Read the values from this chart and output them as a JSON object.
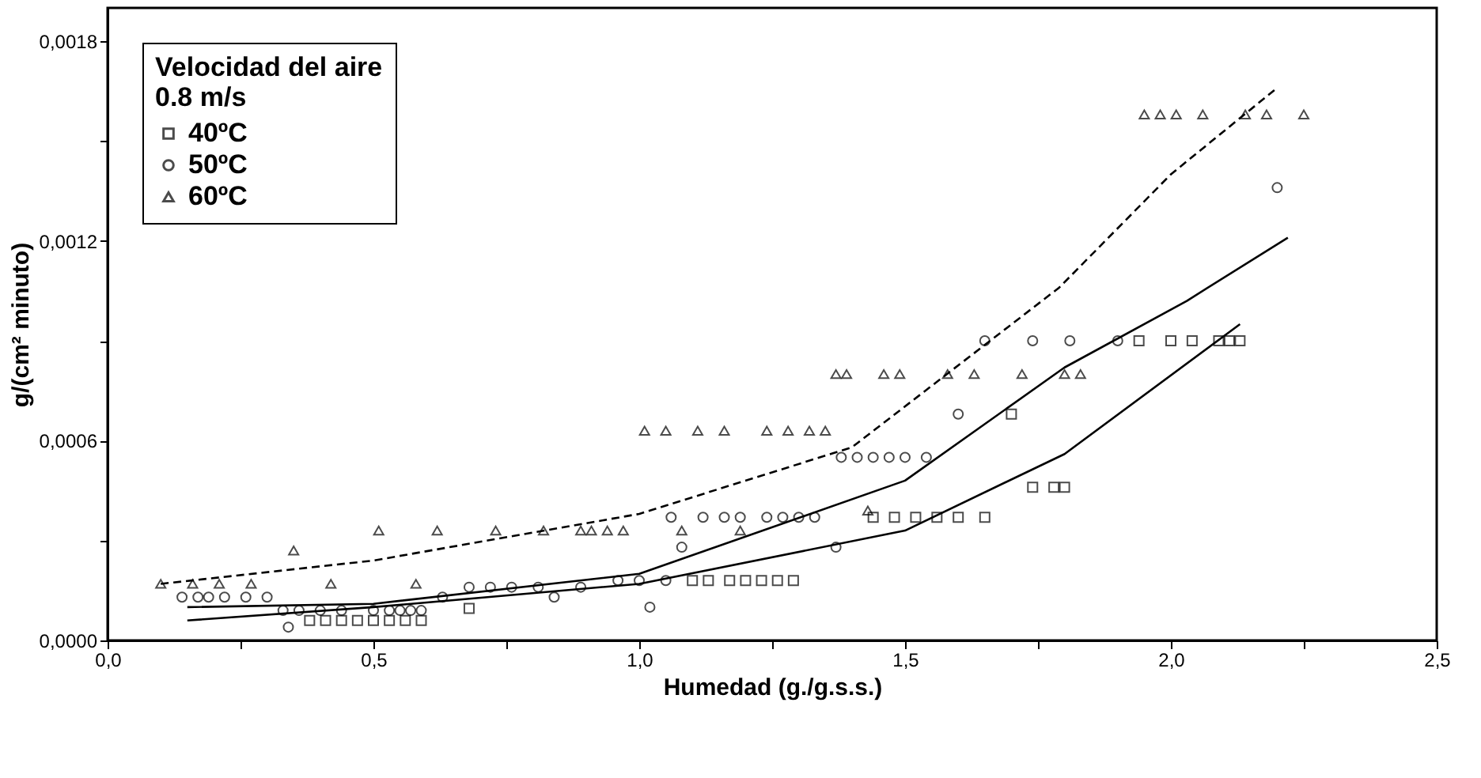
{
  "chart_data": {
    "type": "scatter",
    "xlabel": "Humedad (g./g.s.s.)",
    "ylabel": "g/(cm² minuto)",
    "legend_title": "Velocidad del aire\n0.8 m/s",
    "legend": "top left",
    "grid": false,
    "xlim": [
      0,
      2.5
    ],
    "ylim": [
      0,
      0.0019
    ],
    "xticks": [
      {
        "value": 0,
        "label": "0,0"
      },
      {
        "value": 0.25,
        "label": null
      },
      {
        "value": 0.5,
        "label": "0,5"
      },
      {
        "value": 0.75,
        "label": null
      },
      {
        "value": 1,
        "label": "1,0"
      },
      {
        "value": 1.25,
        "label": null
      },
      {
        "value": 1.5,
        "label": "1,5"
      },
      {
        "value": 1.75,
        "label": null
      },
      {
        "value": 2,
        "label": "2,0"
      },
      {
        "value": 2.25,
        "label": null
      },
      {
        "value": 2.5,
        "label": "2,5"
      }
    ],
    "yticks": [
      {
        "value": 0,
        "label": "0,0000"
      },
      {
        "value": 0.0003,
        "label": null
      },
      {
        "value": 0.0006,
        "label": "0,0006"
      },
      {
        "value": 0.0009,
        "label": null
      },
      {
        "value": 0.0012,
        "label": "0,0012"
      },
      {
        "value": 0.0015,
        "label": null
      },
      {
        "value": 0.0018,
        "label": "0,0018"
      }
    ],
    "series": [
      {
        "name": "40ºC",
        "marker": "square",
        "color": "#000000",
        "x": [
          0.38,
          0.41,
          0.44,
          0.47,
          0.5,
          0.53,
          0.56,
          0.59,
          0.68,
          1.1,
          1.13,
          1.17,
          1.2,
          1.23,
          1.26,
          1.29,
          1.44,
          1.48,
          1.52,
          1.56,
          1.6,
          1.65,
          1.7,
          1.74,
          1.78,
          1.8,
          1.94,
          2.0,
          2.04,
          2.09,
          2.11,
          2.13
        ],
        "values": [
          6e-05,
          6e-05,
          6e-05,
          6e-05,
          6e-05,
          6e-05,
          6e-05,
          6e-05,
          9.6e-05,
          0.00018,
          0.00018,
          0.00018,
          0.00018,
          0.00018,
          0.00018,
          0.00018,
          0.00037,
          0.00037,
          0.00037,
          0.00037,
          0.00037,
          0.00037,
          0.00068,
          0.00046,
          0.00046,
          0.00046,
          0.0009,
          0.0009,
          0.0009,
          0.0009,
          0.0009,
          0.0009
        ]
      },
      {
        "name": "50ºC",
        "marker": "circle",
        "color": "#000000",
        "x": [
          0.14,
          0.17,
          0.19,
          0.22,
          0.26,
          0.3,
          0.33,
          0.34,
          0.36,
          0.4,
          0.44,
          0.5,
          0.53,
          0.55,
          0.57,
          0.59,
          0.63,
          0.68,
          0.72,
          0.76,
          0.81,
          0.84,
          0.89,
          0.96,
          1.0,
          1.02,
          1.05,
          1.06,
          1.08,
          1.12,
          1.16,
          1.19,
          1.24,
          1.27,
          1.3,
          1.33,
          1.37,
          1.38,
          1.41,
          1.44,
          1.47,
          1.5,
          1.54,
          1.6,
          1.65,
          1.74,
          1.81,
          1.9,
          2.2
        ],
        "values": [
          0.00013,
          0.00013,
          0.00013,
          0.00013,
          0.00013,
          0.00013,
          9e-05,
          4e-05,
          9e-05,
          9e-05,
          9e-05,
          9e-05,
          9e-05,
          9e-05,
          9e-05,
          9e-05,
          0.00013,
          0.00016,
          0.00016,
          0.00016,
          0.00016,
          0.00013,
          0.00016,
          0.00018,
          0.00018,
          0.0001,
          0.00018,
          0.00037,
          0.00028,
          0.00037,
          0.00037,
          0.00037,
          0.00037,
          0.00037,
          0.00037,
          0.00037,
          0.00028,
          0.00055,
          0.00055,
          0.00055,
          0.00055,
          0.00055,
          0.00055,
          0.00068,
          0.0009,
          0.0009,
          0.0009,
          0.0009,
          0.00136
        ]
      },
      {
        "name": "60ºC",
        "marker": "triangle",
        "color": "#000000",
        "x": [
          0.1,
          0.16,
          0.21,
          0.27,
          0.35,
          0.42,
          0.51,
          0.58,
          0.62,
          0.73,
          0.82,
          0.89,
          0.91,
          0.94,
          0.97,
          1.01,
          1.05,
          1.08,
          1.11,
          1.16,
          1.19,
          1.24,
          1.28,
          1.32,
          1.35,
          1.37,
          1.39,
          1.43,
          1.46,
          1.49,
          1.58,
          1.63,
          1.72,
          1.8,
          1.83,
          1.95,
          1.98,
          2.01,
          2.06,
          2.14,
          2.18,
          2.25
        ],
        "values": [
          0.00017,
          0.00017,
          0.00017,
          0.00017,
          0.00027,
          0.00017,
          0.00033,
          0.00017,
          0.00033,
          0.00033,
          0.00033,
          0.00033,
          0.00033,
          0.00033,
          0.00033,
          0.00063,
          0.00063,
          0.00033,
          0.00063,
          0.00063,
          0.00033,
          0.00063,
          0.00063,
          0.00063,
          0.00063,
          0.0008,
          0.0008,
          0.00039,
          0.0008,
          0.0008,
          0.0008,
          0.0008,
          0.0008,
          0.0008,
          0.0008,
          0.00158,
          0.00158,
          0.00158,
          0.00158,
          0.00158,
          0.00158,
          0.00158
        ]
      },
      {
        "type": "line",
        "line_style": "solid",
        "color": "#000000",
        "x": [
          0.15,
          0.5,
          1.0,
          1.5,
          1.8,
          2.13
        ],
        "values": [
          6e-05,
          0.0001,
          0.00017,
          0.00033,
          0.00056,
          0.00095
        ]
      },
      {
        "type": "line",
        "line_style": "solid",
        "color": "#000000",
        "x": [
          0.15,
          0.5,
          1.0,
          1.5,
          1.8,
          2.03,
          2.22
        ],
        "values": [
          0.0001,
          0.00011,
          0.0002,
          0.00048,
          0.00082,
          0.00102,
          0.00121
        ]
      },
      {
        "type": "line",
        "line_style": "dashed",
        "color": "#000000",
        "x": [
          0.1,
          0.5,
          1.0,
          1.4,
          1.79,
          2.0,
          2.2
        ],
        "values": [
          0.00017,
          0.00024,
          0.00038,
          0.00058,
          0.00106,
          0.0014,
          0.00166
        ]
      }
    ]
  }
}
